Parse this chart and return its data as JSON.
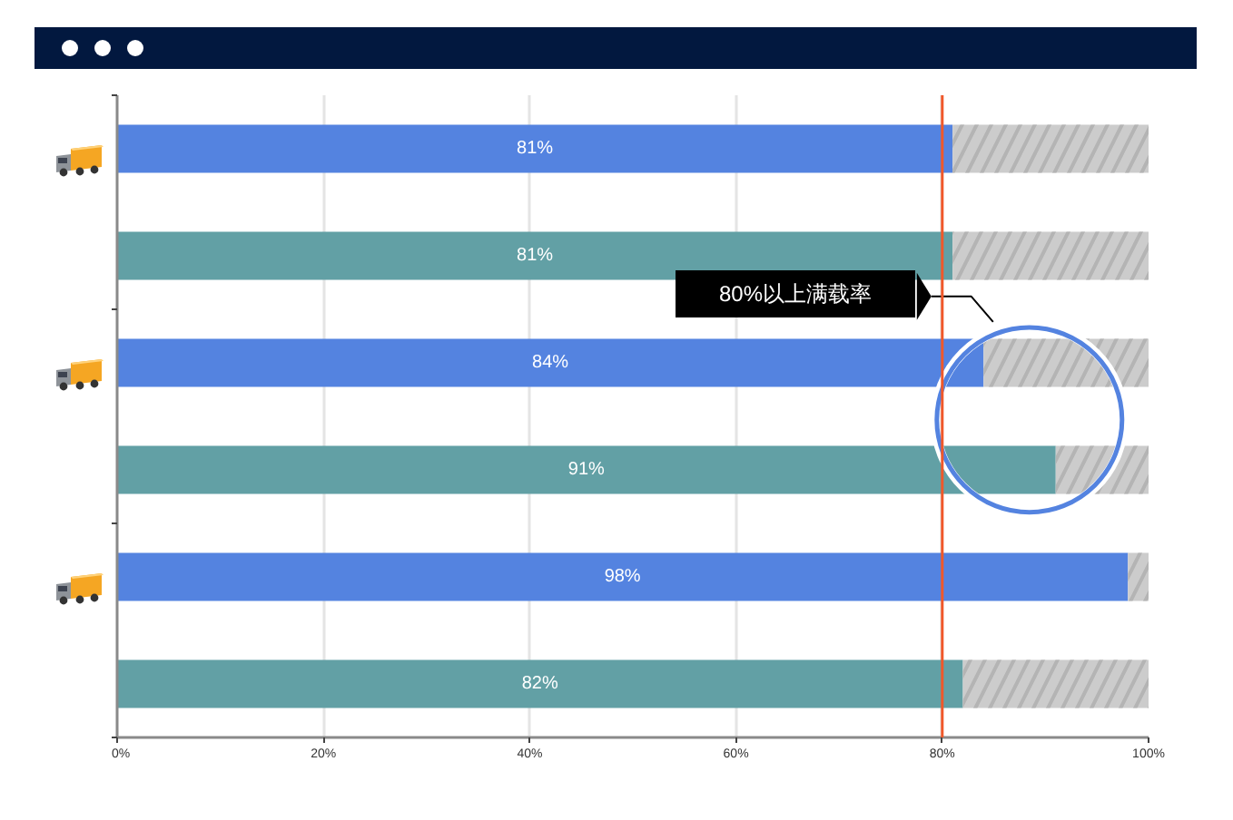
{
  "chart_data": {
    "type": "bar",
    "orientation": "horizontal",
    "stacked": true,
    "categories": [
      null,
      null,
      null,
      null,
      null,
      null
    ],
    "series": [
      {
        "colors": [
          "#5483e0",
          "#62a0a5",
          "#5483e0",
          "#62a0a5",
          "#5483e0",
          "#62a0a5"
        ],
        "values": [
          81,
          81,
          84,
          91,
          98,
          82
        ],
        "value_labels": [
          "81%",
          "81%",
          "84%",
          "91%",
          "98%",
          "82%"
        ]
      },
      {
        "color": "#cccccc",
        "values": [
          19,
          19,
          16,
          9,
          2,
          18
        ]
      }
    ],
    "xlim": [
      0,
      100
    ],
    "xticks": [
      {
        "value": 0,
        "label": "0%"
      },
      {
        "value": 20,
        "label": "20%"
      },
      {
        "value": 40,
        "label": "40%"
      },
      {
        "value": 60,
        "label": "60%"
      },
      {
        "value": 80,
        "label": "80%"
      },
      {
        "value": 100,
        "label": "100%"
      }
    ],
    "grid": "x",
    "ref_lines": [
      {
        "axis": "x",
        "value": 80,
        "color": "#f0582a"
      }
    ],
    "annotations": [
      "80%以上满载率"
    ]
  }
}
